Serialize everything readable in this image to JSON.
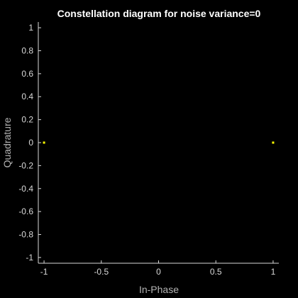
{
  "chart_data": {
    "type": "scatter",
    "title": "Constellation diagram for noise variance=0",
    "xlabel": "In-Phase",
    "ylabel": "Quadrature",
    "xlim": [
      -1.05,
      1.05
    ],
    "ylim": [
      -1.05,
      1.05
    ],
    "xticks": [
      -1,
      -0.5,
      0,
      0.5,
      1
    ],
    "xtick_labels": [
      "-1",
      "-0.5",
      "0",
      "0.5",
      "1"
    ],
    "yticks": [
      -1,
      -0.8,
      -0.6,
      -0.4,
      -0.2,
      0,
      0.2,
      0.4,
      0.6,
      0.8,
      1
    ],
    "ytick_labels": [
      "-1",
      "-0.8",
      "-0.6",
      "-0.4",
      "-0.2",
      "0",
      "0.2",
      "0.4",
      "0.6",
      "0.8",
      "1"
    ],
    "grid": false,
    "legend": "none",
    "background": "#000000",
    "axes_color": "#000000",
    "axis_line_color": "#d9d9d9",
    "series": [
      {
        "color": "#ffff00",
        "points": [
          [
            -1,
            0
          ],
          [
            1,
            0
          ]
        ]
      }
    ]
  }
}
